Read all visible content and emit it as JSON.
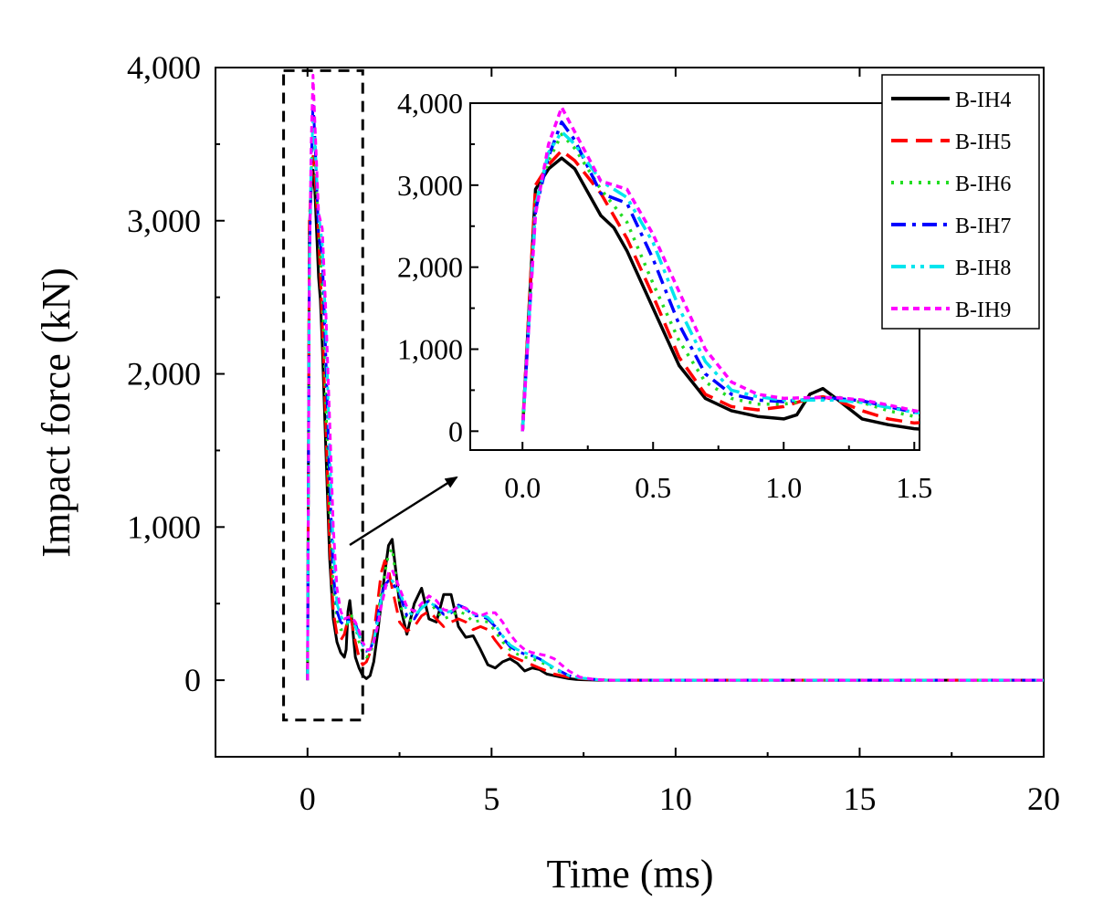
{
  "chart_data": {
    "type": "line",
    "xlabel": "Time (ms)",
    "ylabel": "Impact force (kN)",
    "xlim": [
      -2.5,
      20
    ],
    "ylim": [
      -500,
      4000
    ],
    "xticks": [
      0,
      5,
      10,
      15,
      20
    ],
    "xtick_labels": [
      "0",
      "5",
      "10",
      "15",
      "20"
    ],
    "yticks": [
      0,
      1000,
      2000,
      3000,
      4000
    ],
    "ytick_labels": [
      "0",
      "1,000",
      "2,000",
      "3,000",
      "4,000"
    ],
    "zoom_box": {
      "x": [
        -0.65,
        1.5
      ],
      "y": [
        -260,
        3980
      ]
    },
    "inset": {
      "xlim": [
        -0.2,
        1.52
      ],
      "ylim": [
        -230,
        4000
      ],
      "xticks": [
        0.0,
        0.5,
        1.0,
        1.5
      ],
      "xtick_labels": [
        "0.0",
        "0.5",
        "1.0",
        "1.5"
      ],
      "yticks": [
        0,
        1000,
        2000,
        3000,
        4000
      ],
      "ytick_labels": [
        "0",
        "1,000",
        "2,000",
        "3,000",
        "4,000"
      ]
    },
    "legend_position": "top-right",
    "series": [
      {
        "name": "B-IH4",
        "color": "#000000",
        "dash": "solid",
        "x": [
          0,
          0.05,
          0.1,
          0.15,
          0.2,
          0.3,
          0.35,
          0.4,
          0.5,
          0.6,
          0.7,
          0.8,
          0.9,
          1.0,
          1.05,
          1.1,
          1.15,
          1.2,
          1.3,
          1.4,
          1.5,
          1.6,
          1.7,
          1.8,
          1.9,
          2.0,
          2.1,
          2.2,
          2.3,
          2.5,
          2.7,
          2.9,
          3.1,
          3.3,
          3.5,
          3.7,
          3.9,
          4.1,
          4.3,
          4.5,
          4.7,
          4.9,
          5.1,
          5.3,
          5.5,
          5.7,
          5.9,
          6.1,
          6.3,
          6.5,
          6.7,
          6.9,
          7.1,
          7.3,
          7.6,
          8.0,
          9,
          12,
          16,
          20
        ],
        "y": [
          0,
          2950,
          3200,
          3330,
          3200,
          2630,
          2480,
          2200,
          1500,
          800,
          400,
          250,
          180,
          150,
          200,
          450,
          520,
          400,
          150,
          80,
          30,
          10,
          30,
          120,
          300,
          500,
          700,
          880,
          920,
          500,
          300,
          500,
          600,
          400,
          380,
          560,
          560,
          350,
          280,
          290,
          200,
          100,
          80,
          120,
          140,
          110,
          60,
          80,
          70,
          40,
          30,
          20,
          10,
          5,
          2,
          0,
          0,
          0,
          0,
          0
        ]
      },
      {
        "name": "B-IH5",
        "color": "#ff0000",
        "dash": "long",
        "x": [
          0,
          0.05,
          0.1,
          0.15,
          0.2,
          0.3,
          0.4,
          0.5,
          0.6,
          0.7,
          0.8,
          0.9,
          1.0,
          1.1,
          1.15,
          1.2,
          1.3,
          1.4,
          1.5,
          1.6,
          1.7,
          1.8,
          1.9,
          2.0,
          2.1,
          2.2,
          2.3,
          2.5,
          2.7,
          2.9,
          3.1,
          3.3,
          3.5,
          3.7,
          3.9,
          4.1,
          4.3,
          4.5,
          4.7,
          4.9,
          5.1,
          5.3,
          5.5,
          5.7,
          5.9,
          6.1,
          6.3,
          6.5,
          6.7,
          6.9,
          7.1,
          7.4,
          7.8,
          8.2,
          9,
          12,
          16,
          20
        ],
        "y": [
          0,
          3000,
          3250,
          3420,
          3300,
          2900,
          2350,
          1650,
          900,
          450,
          300,
          260,
          300,
          400,
          420,
          380,
          250,
          150,
          100,
          120,
          180,
          300,
          500,
          700,
          780,
          720,
          600,
          380,
          320,
          350,
          420,
          450,
          400,
          350,
          380,
          400,
          380,
          330,
          350,
          330,
          260,
          200,
          160,
          140,
          120,
          100,
          80,
          60,
          40,
          30,
          20,
          10,
          5,
          0,
          0,
          0,
          0,
          0
        ]
      },
      {
        "name": "B-IH6",
        "color": "#22dd22",
        "dash": "dot",
        "x": [
          0,
          0.05,
          0.1,
          0.15,
          0.2,
          0.3,
          0.4,
          0.5,
          0.6,
          0.7,
          0.8,
          0.9,
          1.0,
          1.1,
          1.2,
          1.3,
          1.4,
          1.5,
          1.6,
          1.7,
          1.8,
          1.9,
          2.0,
          2.1,
          2.2,
          2.3,
          2.5,
          2.7,
          2.9,
          3.1,
          3.3,
          3.5,
          3.7,
          3.9,
          4.1,
          4.3,
          4.5,
          4.7,
          4.9,
          5.1,
          5.3,
          5.5,
          5.7,
          5.9,
          6.1,
          6.3,
          6.5,
          6.7,
          6.9,
          7.1,
          7.4,
          7.8,
          8.2,
          9,
          12,
          16,
          20
        ],
        "y": [
          0,
          2800,
          3300,
          3620,
          3450,
          2950,
          2550,
          1800,
          1100,
          600,
          400,
          330,
          330,
          380,
          420,
          350,
          250,
          180,
          150,
          170,
          250,
          400,
          580,
          700,
          820,
          860,
          500,
          380,
          400,
          480,
          520,
          450,
          400,
          420,
          450,
          430,
          380,
          390,
          380,
          320,
          250,
          200,
          170,
          150,
          140,
          120,
          100,
          70,
          50,
          30,
          15,
          5,
          0,
          0,
          0,
          0,
          0
        ]
      },
      {
        "name": "B-IH7",
        "color": "#0000ff",
        "dash": "dashdot",
        "x": [
          0,
          0.05,
          0.1,
          0.15,
          0.2,
          0.3,
          0.4,
          0.5,
          0.6,
          0.7,
          0.8,
          0.9,
          1.0,
          1.1,
          1.2,
          1.3,
          1.4,
          1.5,
          1.6,
          1.7,
          1.8,
          1.9,
          2.0,
          2.1,
          2.2,
          2.3,
          2.5,
          2.7,
          2.9,
          3.1,
          3.3,
          3.5,
          3.7,
          3.9,
          4.1,
          4.3,
          4.5,
          4.7,
          4.9,
          5.1,
          5.3,
          5.5,
          5.7,
          5.9,
          6.1,
          6.3,
          6.5,
          6.7,
          6.9,
          7.1,
          7.4,
          7.8,
          8.2,
          9,
          12,
          16,
          20
        ],
        "y": [
          0,
          2700,
          3350,
          3770,
          3550,
          2900,
          2780,
          2100,
          1300,
          700,
          450,
          380,
          360,
          390,
          400,
          370,
          300,
          230,
          190,
          200,
          260,
          400,
          550,
          620,
          650,
          640,
          560,
          420,
          400,
          480,
          520,
          480,
          430,
          440,
          490,
          470,
          420,
          420,
          400,
          350,
          280,
          220,
          190,
          170,
          160,
          140,
          110,
          80,
          55,
          30,
          15,
          5,
          0,
          0,
          0,
          0,
          0
        ]
      },
      {
        "name": "B-IH8",
        "color": "#00e5ee",
        "dash": "dashdotdot",
        "x": [
          0,
          0.05,
          0.1,
          0.15,
          0.2,
          0.3,
          0.4,
          0.5,
          0.6,
          0.7,
          0.8,
          0.9,
          1.0,
          1.1,
          1.2,
          1.3,
          1.4,
          1.5,
          1.6,
          1.7,
          1.8,
          1.9,
          2.0,
          2.1,
          2.2,
          2.3,
          2.5,
          2.7,
          2.9,
          3.1,
          3.3,
          3.5,
          3.7,
          3.9,
          4.1,
          4.3,
          4.5,
          4.7,
          4.9,
          5.1,
          5.3,
          5.5,
          5.7,
          5.9,
          6.1,
          6.3,
          6.5,
          6.7,
          6.9,
          7.1,
          7.4,
          7.8,
          8.2,
          9,
          12,
          16,
          20
        ],
        "y": [
          0,
          2750,
          3400,
          3650,
          3500,
          3050,
          2850,
          2300,
          1500,
          850,
          500,
          420,
          380,
          380,
          380,
          350,
          290,
          230,
          190,
          200,
          260,
          380,
          520,
          600,
          640,
          650,
          580,
          450,
          420,
          470,
          510,
          480,
          440,
          450,
          480,
          460,
          430,
          430,
          410,
          360,
          290,
          230,
          200,
          180,
          160,
          140,
          110,
          80,
          55,
          30,
          15,
          5,
          0,
          0,
          0,
          0,
          0
        ]
      },
      {
        "name": "B-IH9",
        "color": "#ff00ff",
        "dash": "shortdash",
        "x": [
          0,
          0.05,
          0.1,
          0.15,
          0.2,
          0.3,
          0.4,
          0.5,
          0.6,
          0.7,
          0.8,
          0.9,
          1.0,
          1.1,
          1.2,
          1.3,
          1.4,
          1.5,
          1.6,
          1.7,
          1.8,
          1.9,
          2.0,
          2.1,
          2.2,
          2.3,
          2.5,
          2.7,
          2.9,
          3.1,
          3.3,
          3.5,
          3.7,
          3.9,
          4.1,
          4.3,
          4.5,
          4.7,
          4.9,
          5.1,
          5.3,
          5.5,
          5.7,
          5.9,
          6.1,
          6.3,
          6.5,
          6.7,
          6.9,
          7.1,
          7.4,
          7.8,
          8.2,
          9,
          12,
          16,
          20
        ],
        "y": [
          0,
          2650,
          3500,
          3950,
          3650,
          3050,
          2950,
          2400,
          1700,
          1000,
          600,
          450,
          400,
          410,
          410,
          380,
          320,
          250,
          200,
          200,
          250,
          350,
          480,
          580,
          700,
          720,
          600,
          480,
          450,
          500,
          550,
          520,
          460,
          450,
          480,
          470,
          440,
          420,
          440,
          440,
          380,
          300,
          240,
          200,
          180,
          170,
          160,
          140,
          100,
          60,
          20,
          5,
          0,
          0,
          0,
          0,
          0
        ]
      }
    ]
  }
}
